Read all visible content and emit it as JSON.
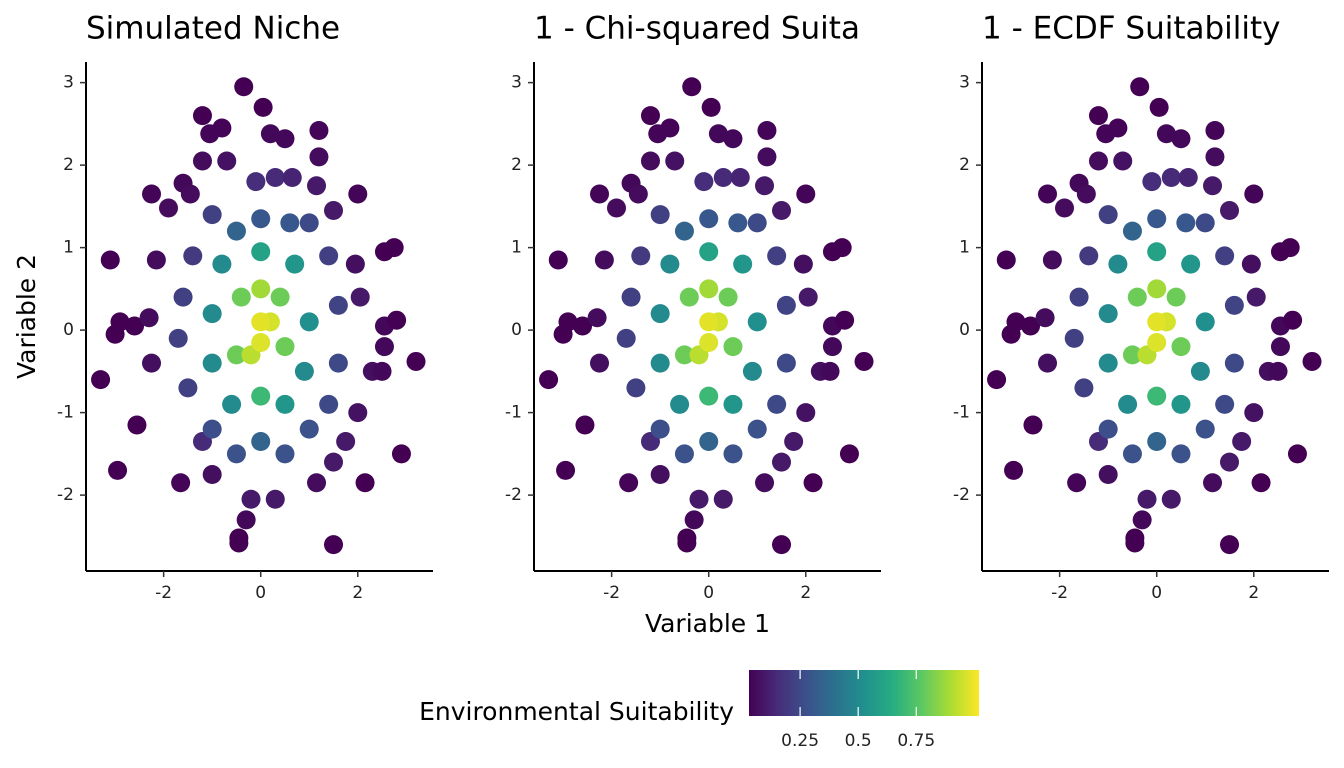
{
  "chart_data": [
    {
      "type": "scatter",
      "title": "Simulated Niche",
      "ylabel": "Variable 2",
      "x": [
        -0.35,
        0.05,
        -1.2,
        -0.8,
        -1.05,
        0.2,
        0.5,
        1.2,
        1.2,
        -1.2,
        -0.7,
        -2.25,
        -1.6,
        -1.45,
        -1.9,
        2.0,
        1.15,
        0.3,
        -0.1,
        0.65,
        -3.1,
        -2.15,
        2.55,
        2.75,
        1.95,
        1.5,
        -2.9,
        -3.0,
        -2.6,
        -2.3,
        -3.3,
        -2.25,
        2.05,
        2.55,
        2.8,
        2.55,
        3.2,
        2.3,
        2.5,
        2.0,
        -2.55,
        -2.95,
        2.9,
        2.15,
        1.5,
        -0.45,
        -0.45,
        -0.3,
        -1.65,
        -1.0,
        1.15,
        -0.2,
        0.3,
        -1.2,
        1.75,
        1.5,
        -1.0,
        0.0,
        0.6,
        1.0,
        -0.5,
        -1.4,
        1.4,
        -1.6,
        1.6,
        -1.7,
        1.6,
        -1.5,
        1.4,
        -1.0,
        1.0,
        0.0,
        -0.5,
        0.5,
        -0.8,
        0.0,
        0.7,
        -1.0,
        1.0,
        -1.0,
        0.9,
        -0.6,
        0.5,
        0.0,
        -0.4,
        0.4,
        -0.5,
        0.5,
        0.0,
        -0.2,
        0.2,
        0.0,
        0.0
      ],
      "y": [
        2.95,
        2.7,
        2.6,
        2.45,
        2.38,
        2.38,
        2.32,
        2.42,
        2.1,
        2.05,
        2.05,
        1.65,
        1.78,
        1.65,
        1.48,
        1.65,
        1.75,
        1.85,
        1.8,
        1.85,
        0.85,
        0.85,
        0.95,
        1.0,
        0.8,
        1.45,
        0.1,
        -0.05,
        0.05,
        0.15,
        -0.6,
        -0.4,
        0.4,
        0.05,
        0.12,
        -0.2,
        -0.38,
        -0.5,
        -0.5,
        -1.0,
        -1.15,
        -1.7,
        -1.5,
        -1.85,
        -2.6,
        -2.52,
        -2.58,
        -2.3,
        -1.85,
        -1.75,
        -1.85,
        -2.05,
        -2.05,
        -1.35,
        -1.35,
        -1.6,
        1.4,
        1.35,
        1.3,
        1.3,
        1.2,
        0.9,
        0.9,
        0.4,
        0.3,
        -0.1,
        -0.4,
        -0.7,
        -0.9,
        -1.2,
        -1.2,
        -1.35,
        -1.5,
        -1.5,
        0.8,
        0.95,
        0.8,
        0.2,
        0.1,
        -0.4,
        -0.5,
        -0.9,
        -0.9,
        -0.8,
        0.4,
        0.4,
        -0.3,
        -0.2,
        0.5,
        -0.3,
        0.1,
        0.1,
        -0.15
      ],
      "values": [
        0.01,
        0.03,
        0.02,
        0.04,
        0.04,
        0.05,
        0.05,
        0.04,
        0.06,
        0.06,
        0.08,
        0.04,
        0.05,
        0.06,
        0.06,
        0.04,
        0.1,
        0.15,
        0.16,
        0.13,
        0.01,
        0.06,
        0.03,
        0.02,
        0.07,
        0.1,
        0.02,
        0.01,
        0.03,
        0.06,
        0.01,
        0.07,
        0.1,
        0.05,
        0.03,
        0.05,
        0.01,
        0.07,
        0.05,
        0.08,
        0.02,
        0.01,
        0.01,
        0.03,
        0.01,
        0.03,
        0.02,
        0.05,
        0.04,
        0.07,
        0.06,
        0.1,
        0.1,
        0.15,
        0.1,
        0.1,
        0.22,
        0.3,
        0.3,
        0.25,
        0.35,
        0.2,
        0.22,
        0.22,
        0.23,
        0.22,
        0.25,
        0.22,
        0.25,
        0.27,
        0.28,
        0.35,
        0.28,
        0.28,
        0.5,
        0.6,
        0.55,
        0.5,
        0.52,
        0.5,
        0.5,
        0.5,
        0.55,
        0.7,
        0.8,
        0.8,
        0.8,
        0.8,
        0.88,
        0.92,
        0.96,
        0.98,
        0.97
      ],
      "xlim": [
        -3.6,
        3.55
      ],
      "ylim": [
        -2.92,
        3.25
      ],
      "xticks": [
        -2,
        0,
        2
      ],
      "yticks": [
        -2,
        -1,
        0,
        1,
        2,
        3
      ]
    },
    {
      "type": "scatter",
      "title": "1 - Chi-squared Suita",
      "xlabel": "Variable 1",
      "x": [
        -0.35,
        0.05,
        -1.2,
        -0.8,
        -1.05,
        0.2,
        0.5,
        1.2,
        1.2,
        -1.2,
        -0.7,
        -2.25,
        -1.6,
        -1.45,
        -1.9,
        2.0,
        1.15,
        0.3,
        -0.1,
        0.65,
        -3.1,
        -2.15,
        2.55,
        2.75,
        1.95,
        1.5,
        -2.9,
        -3.0,
        -2.6,
        -2.3,
        -3.3,
        -2.25,
        2.05,
        2.55,
        2.8,
        2.55,
        3.2,
        2.3,
        2.5,
        2.0,
        -2.55,
        -2.95,
        2.9,
        2.15,
        1.5,
        -0.45,
        -0.45,
        -0.3,
        -1.65,
        -1.0,
        1.15,
        -0.2,
        0.3,
        -1.2,
        1.75,
        1.5,
        -1.0,
        0.0,
        0.6,
        1.0,
        -0.5,
        -1.4,
        1.4,
        -1.6,
        1.6,
        -1.7,
        1.6,
        -1.5,
        1.4,
        -1.0,
        1.0,
        0.0,
        -0.5,
        0.5,
        -0.8,
        0.0,
        0.7,
        -1.0,
        1.0,
        -1.0,
        0.9,
        -0.6,
        0.5,
        0.0,
        -0.4,
        0.4,
        -0.5,
        0.5,
        0.0,
        -0.2,
        0.2,
        0.0,
        0.0
      ],
      "y": [
        2.95,
        2.7,
        2.6,
        2.45,
        2.38,
        2.38,
        2.32,
        2.42,
        2.1,
        2.05,
        2.05,
        1.65,
        1.78,
        1.65,
        1.48,
        1.65,
        1.75,
        1.85,
        1.8,
        1.85,
        0.85,
        0.85,
        0.95,
        1.0,
        0.8,
        1.45,
        0.1,
        -0.05,
        0.05,
        0.15,
        -0.6,
        -0.4,
        0.4,
        0.05,
        0.12,
        -0.2,
        -0.38,
        -0.5,
        -0.5,
        -1.0,
        -1.15,
        -1.7,
        -1.5,
        -1.85,
        -2.6,
        -2.52,
        -2.58,
        -2.3,
        -1.85,
        -1.75,
        -1.85,
        -2.05,
        -2.05,
        -1.35,
        -1.35,
        -1.6,
        1.4,
        1.35,
        1.3,
        1.3,
        1.2,
        0.9,
        0.9,
        0.4,
        0.3,
        -0.1,
        -0.4,
        -0.7,
        -0.9,
        -1.2,
        -1.2,
        -1.35,
        -1.5,
        -1.5,
        0.8,
        0.95,
        0.8,
        0.2,
        0.1,
        -0.4,
        -0.5,
        -0.9,
        -0.9,
        -0.8,
        0.4,
        0.4,
        -0.3,
        -0.2,
        0.5,
        -0.3,
        0.1,
        0.1,
        -0.15
      ],
      "values": [
        0.01,
        0.03,
        0.02,
        0.04,
        0.04,
        0.05,
        0.05,
        0.04,
        0.06,
        0.06,
        0.08,
        0.04,
        0.05,
        0.06,
        0.06,
        0.04,
        0.1,
        0.15,
        0.16,
        0.13,
        0.01,
        0.06,
        0.03,
        0.02,
        0.07,
        0.1,
        0.02,
        0.01,
        0.03,
        0.06,
        0.01,
        0.07,
        0.1,
        0.05,
        0.03,
        0.05,
        0.01,
        0.07,
        0.05,
        0.08,
        0.02,
        0.01,
        0.01,
        0.03,
        0.01,
        0.03,
        0.02,
        0.05,
        0.04,
        0.07,
        0.06,
        0.1,
        0.1,
        0.15,
        0.1,
        0.1,
        0.22,
        0.3,
        0.3,
        0.25,
        0.35,
        0.2,
        0.22,
        0.22,
        0.23,
        0.22,
        0.25,
        0.22,
        0.25,
        0.27,
        0.28,
        0.35,
        0.28,
        0.28,
        0.5,
        0.6,
        0.55,
        0.5,
        0.52,
        0.5,
        0.5,
        0.5,
        0.55,
        0.7,
        0.8,
        0.8,
        0.8,
        0.8,
        0.88,
        0.92,
        0.96,
        0.98,
        0.97
      ],
      "xlim": [
        -3.6,
        3.55
      ],
      "ylim": [
        -2.92,
        3.25
      ],
      "xticks": [
        -2,
        0,
        2
      ],
      "yticks": [
        -2,
        -1,
        0,
        1,
        2,
        3
      ]
    },
    {
      "type": "scatter",
      "title": "1 - ECDF Suitability",
      "x": [
        -0.35,
        0.05,
        -1.2,
        -0.8,
        -1.05,
        0.2,
        0.5,
        1.2,
        1.2,
        -1.2,
        -0.7,
        -2.25,
        -1.6,
        -1.45,
        -1.9,
        2.0,
        1.15,
        0.3,
        -0.1,
        0.65,
        -3.1,
        -2.15,
        2.55,
        2.75,
        1.95,
        1.5,
        -2.9,
        -3.0,
        -2.6,
        -2.3,
        -3.3,
        -2.25,
        2.05,
        2.55,
        2.8,
        2.55,
        3.2,
        2.3,
        2.5,
        2.0,
        -2.55,
        -2.95,
        2.9,
        2.15,
        1.5,
        -0.45,
        -0.45,
        -0.3,
        -1.65,
        -1.0,
        1.15,
        -0.2,
        0.3,
        -1.2,
        1.75,
        1.5,
        -1.0,
        0.0,
        0.6,
        1.0,
        -0.5,
        -1.4,
        1.4,
        -1.6,
        1.6,
        -1.7,
        1.6,
        -1.5,
        1.4,
        -1.0,
        1.0,
        0.0,
        -0.5,
        0.5,
        -0.8,
        0.0,
        0.7,
        -1.0,
        1.0,
        -1.0,
        0.9,
        -0.6,
        0.5,
        0.0,
        -0.4,
        0.4,
        -0.5,
        0.5,
        0.0,
        -0.2,
        0.2,
        0.0,
        0.0
      ],
      "y": [
        2.95,
        2.7,
        2.6,
        2.45,
        2.38,
        2.38,
        2.32,
        2.42,
        2.1,
        2.05,
        2.05,
        1.65,
        1.78,
        1.65,
        1.48,
        1.65,
        1.75,
        1.85,
        1.8,
        1.85,
        0.85,
        0.85,
        0.95,
        1.0,
        0.8,
        1.45,
        0.1,
        -0.05,
        0.05,
        0.15,
        -0.6,
        -0.4,
        0.4,
        0.05,
        0.12,
        -0.2,
        -0.38,
        -0.5,
        -0.5,
        -1.0,
        -1.15,
        -1.7,
        -1.5,
        -1.85,
        -2.6,
        -2.52,
        -2.58,
        -2.3,
        -1.85,
        -1.75,
        -1.85,
        -2.05,
        -2.05,
        -1.35,
        -1.35,
        -1.6,
        1.4,
        1.35,
        1.3,
        1.3,
        1.2,
        0.9,
        0.9,
        0.4,
        0.3,
        -0.1,
        -0.4,
        -0.7,
        -0.9,
        -1.2,
        -1.2,
        -1.35,
        -1.5,
        -1.5,
        0.8,
        0.95,
        0.8,
        0.2,
        0.1,
        -0.4,
        -0.5,
        -0.9,
        -0.9,
        -0.8,
        0.4,
        0.4,
        -0.3,
        -0.2,
        0.5,
        -0.3,
        0.1,
        0.1,
        -0.15
      ],
      "values": [
        0.01,
        0.03,
        0.02,
        0.04,
        0.04,
        0.05,
        0.05,
        0.04,
        0.06,
        0.06,
        0.08,
        0.04,
        0.05,
        0.06,
        0.06,
        0.04,
        0.1,
        0.15,
        0.16,
        0.13,
        0.01,
        0.06,
        0.03,
        0.02,
        0.07,
        0.1,
        0.02,
        0.01,
        0.03,
        0.06,
        0.01,
        0.07,
        0.1,
        0.05,
        0.03,
        0.05,
        0.01,
        0.07,
        0.05,
        0.08,
        0.02,
        0.01,
        0.01,
        0.03,
        0.01,
        0.03,
        0.02,
        0.05,
        0.04,
        0.07,
        0.06,
        0.1,
        0.1,
        0.15,
        0.1,
        0.1,
        0.22,
        0.3,
        0.3,
        0.25,
        0.35,
        0.2,
        0.22,
        0.22,
        0.23,
        0.22,
        0.25,
        0.22,
        0.25,
        0.27,
        0.28,
        0.35,
        0.28,
        0.28,
        0.5,
        0.6,
        0.55,
        0.5,
        0.52,
        0.5,
        0.5,
        0.5,
        0.55,
        0.7,
        0.8,
        0.8,
        0.8,
        0.8,
        0.88,
        0.92,
        0.96,
        0.98,
        0.97
      ],
      "xlim": [
        -3.6,
        3.55
      ],
      "ylim": [
        -2.92,
        3.25
      ],
      "xticks": [
        -2,
        0,
        2
      ],
      "yticks": [
        -2,
        -1,
        0,
        1,
        2,
        3
      ]
    }
  ],
  "colorbar": {
    "title": "Environmental Suitability",
    "lim": [
      0.03,
      1.02
    ],
    "ticks": [
      0.25,
      0.5,
      0.75
    ],
    "palette": "viridis"
  }
}
